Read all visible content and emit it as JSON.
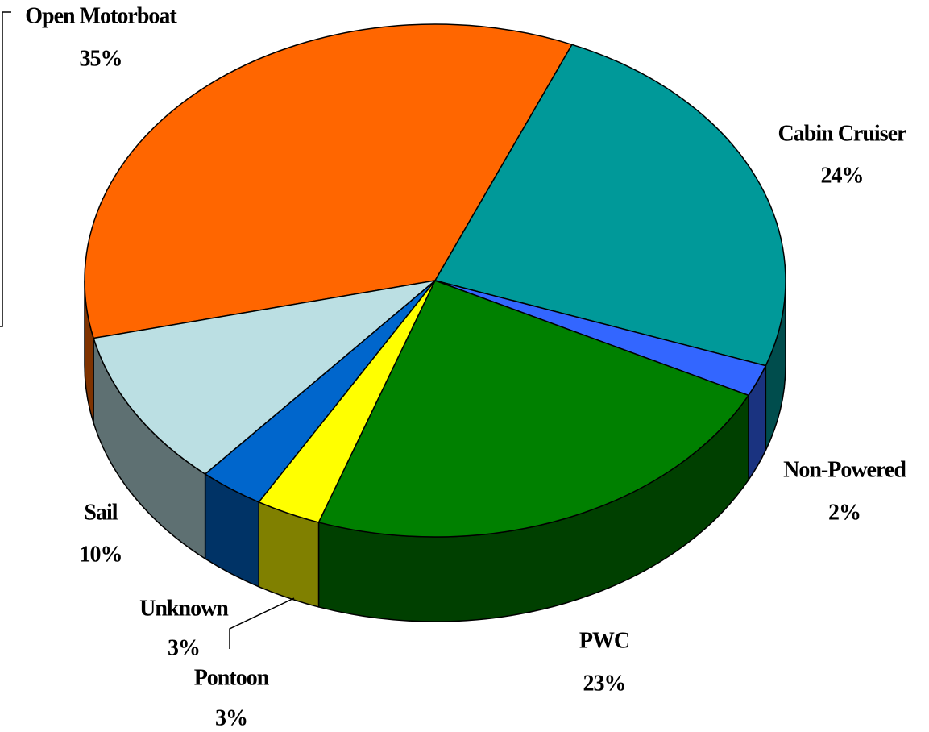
{
  "chart_data": {
    "type": "pie",
    "categories": [
      "Open Motorboat",
      "Cabin Cruiser",
      "Non-Powered",
      "PWC",
      "Pontoon",
      "Unknown",
      "Sail"
    ],
    "values": [
      35,
      24,
      2,
      23,
      3,
      3,
      10
    ],
    "value_labels": [
      "35%",
      "24%",
      "2%",
      "23%",
      "3%",
      "3%",
      "10%"
    ],
    "colors": [
      "#ff6600",
      "#009999",
      "#3366ff",
      "#008000",
      "#ffff00",
      "#0066cc",
      "#bbdfe3"
    ]
  }
}
